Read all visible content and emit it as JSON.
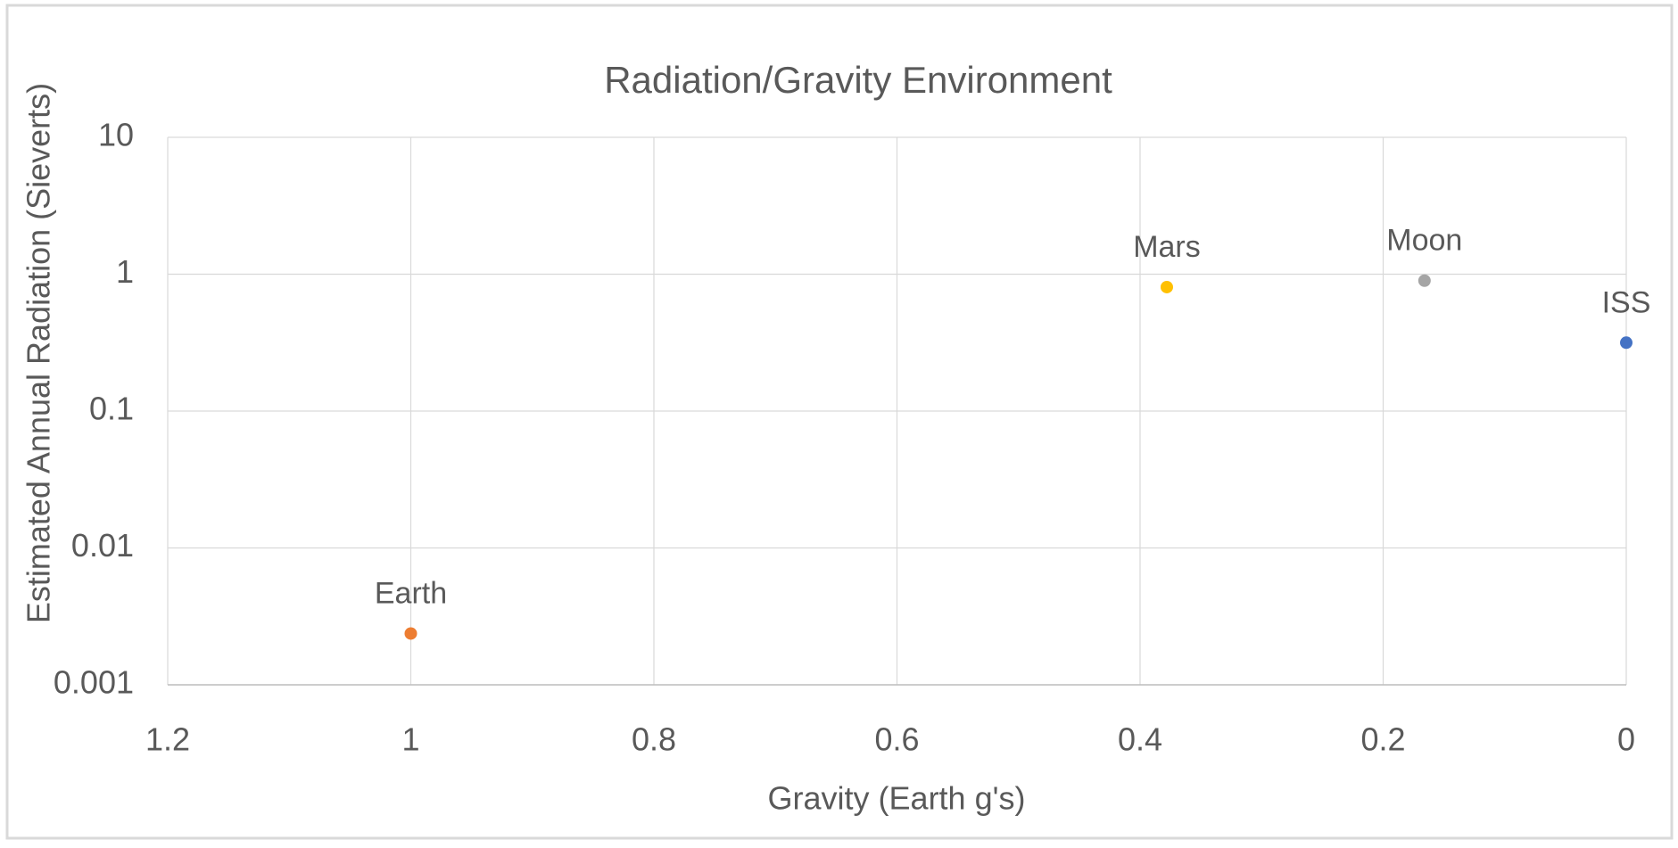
{
  "chart_data": {
    "type": "scatter",
    "title": "Radiation/Gravity Environment",
    "x_label": "Gravity (Earth g's)",
    "y_label": "Estimated Annual Radiation (Sieverts)",
    "series": [
      {
        "name": "Earth",
        "color": "#ed7d31",
        "x": [
          1
        ],
        "values": [
          0.00237
        ]
      },
      {
        "name": "Mars",
        "color": "#ffc000",
        "x": [
          0.378
        ],
        "values": [
          0.805
        ]
      },
      {
        "name": "Moon",
        "color": "#a5a5a5",
        "x": [
          0.166
        ],
        "values": [
          0.897
        ]
      },
      {
        "name": "ISS",
        "color": "#4472c4",
        "x": [
          0
        ],
        "values": [
          0.316
        ]
      }
    ],
    "xlim": [
      1.2,
      0
    ],
    "xticks": [
      1.2,
      1,
      0.8,
      0.6,
      0.4,
      0.2,
      0
    ],
    "ylim": [
      0.001,
      10
    ],
    "yticks": [
      0.001,
      0.01,
      0.1,
      1,
      10
    ],
    "log_y": true,
    "grid": true
  }
}
